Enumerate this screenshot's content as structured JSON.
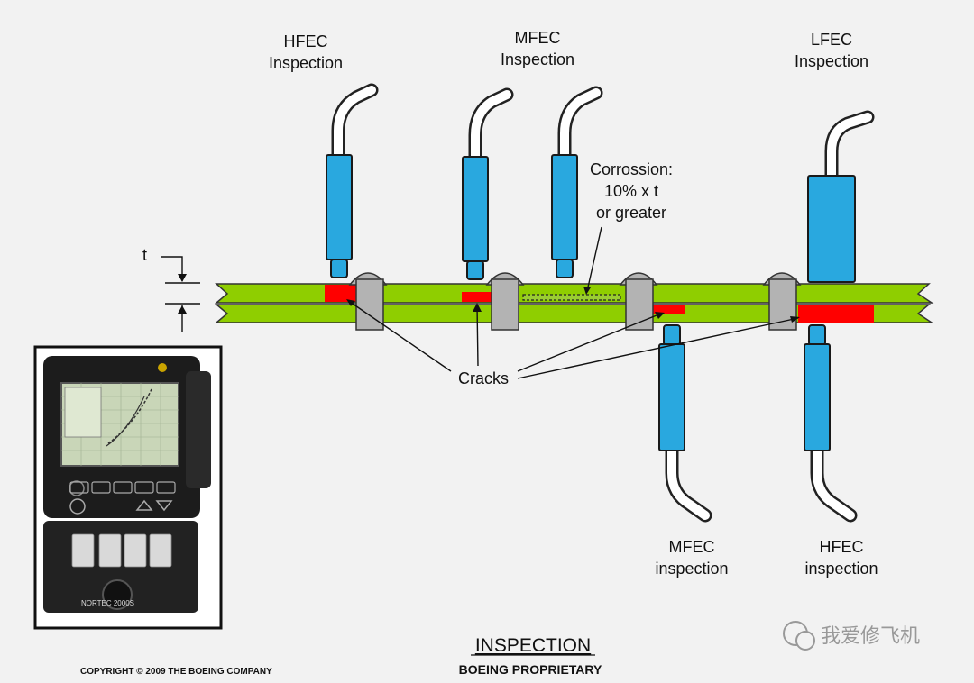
{
  "labels": {
    "top_left_probe": [
      "HFEC",
      "Inspection"
    ],
    "top_mid_probe": [
      "MFEC",
      "Inspection"
    ],
    "top_right_probe": [
      "LFEC",
      "Inspection"
    ],
    "bottom_mid_probe": [
      "MFEC",
      "inspection"
    ],
    "bottom_right_probe": [
      "HFEC",
      "inspection"
    ],
    "corrosion": [
      "Corrossion:",
      "10% x t",
      "or greater"
    ],
    "cracks": "Cracks",
    "thickness": "t"
  },
  "footer": {
    "title": "INSPECTION",
    "proprietary": "BOEING PROPRIETARY",
    "copyright": "COPYRIGHT © 2009 THE BOEING COMPANY"
  },
  "watermark": "我爱修飞机",
  "device": {
    "brand": "NORTEC 2000S"
  },
  "colors": {
    "plate": "#8fce00",
    "probe": "#29a8df",
    "crack": "#ff0000",
    "rivet": "#b3b3b3"
  }
}
